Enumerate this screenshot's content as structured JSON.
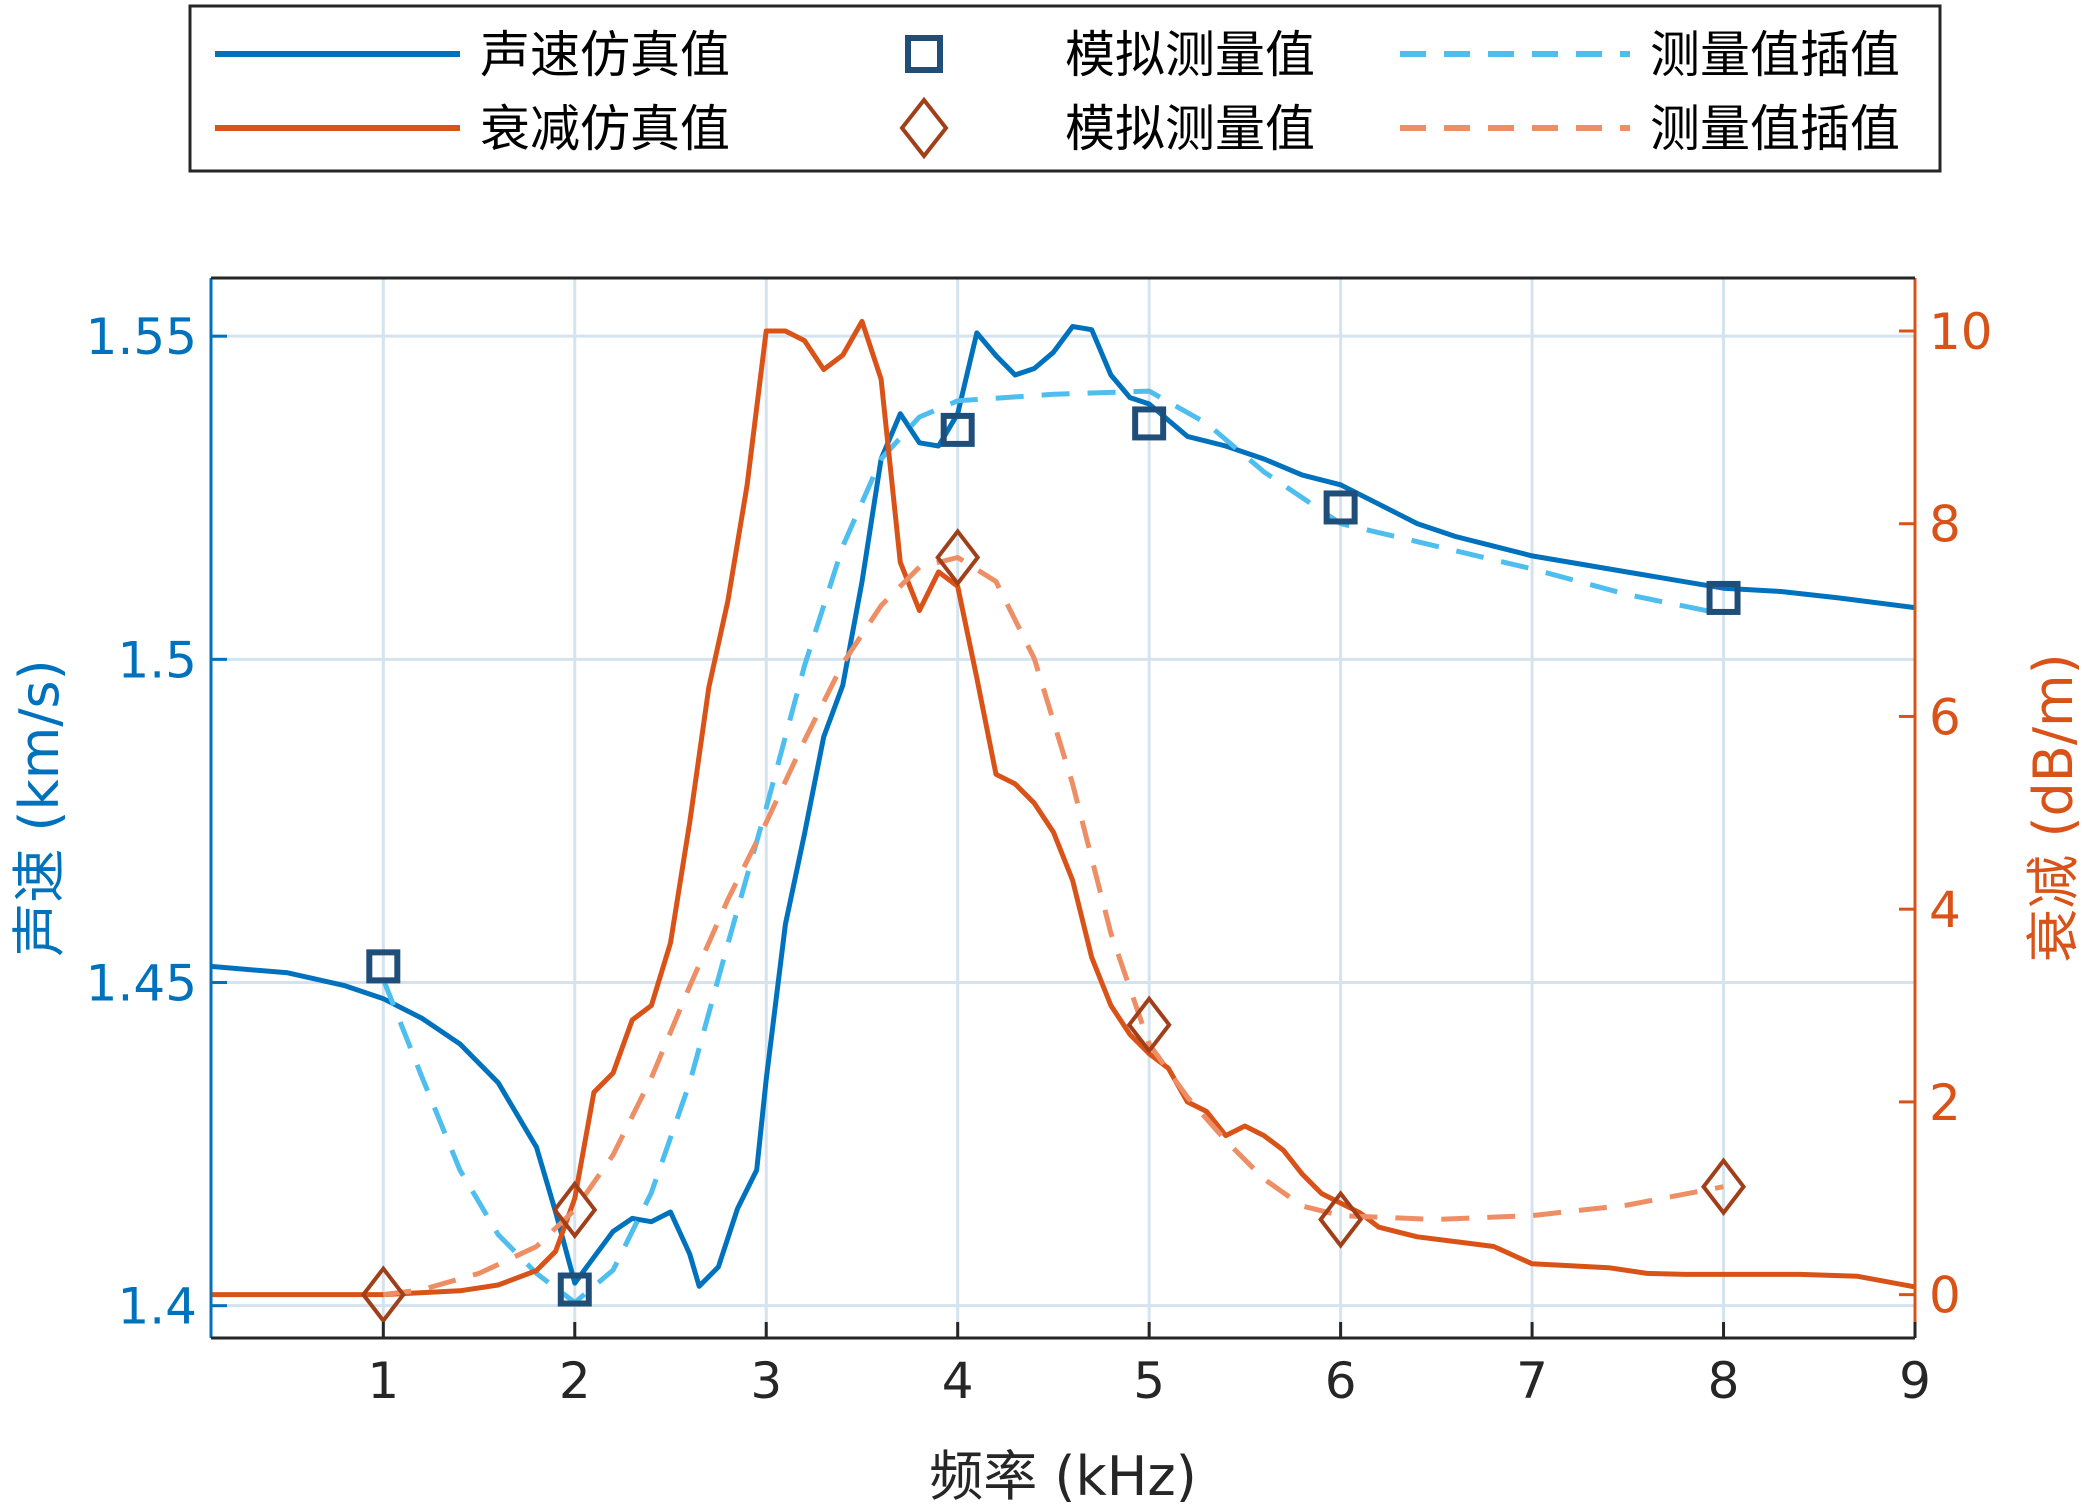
{
  "chart_data": {
    "type": "line",
    "xlabel": "频率 (kHz)",
    "ylabel_left": "声速 (km/s)",
    "ylabel_right": "衰减 (dB/m)",
    "xlim": [
      0.1,
      9
    ],
    "ylim_left": [
      1.395,
      1.559
    ],
    "ylim_right": [
      -0.45,
      10.55
    ],
    "x_ticks": [
      1,
      2,
      3,
      4,
      5,
      6,
      7,
      8,
      9
    ],
    "y_left_ticks": [
      {
        "value": 1.4,
        "label": "1.4"
      },
      {
        "value": 1.45,
        "label": "1.45"
      },
      {
        "value": 1.5,
        "label": "1.5"
      },
      {
        "value": 1.55,
        "label": "1.55"
      }
    ],
    "y_right_ticks": [
      {
        "value": 0,
        "label": "0"
      },
      {
        "value": 2,
        "label": "2"
      },
      {
        "value": 4,
        "label": "4"
      },
      {
        "value": 6,
        "label": "6"
      },
      {
        "value": 8,
        "label": "8"
      },
      {
        "value": 10,
        "label": "10"
      }
    ],
    "grid": true,
    "legend_position": "top",
    "colors": {
      "speed": "#0072BD",
      "speed_marker": "#1F4E79",
      "speed_interp": "#4DBEEE",
      "atten": "#D95319",
      "atten_marker": "#A0401A",
      "atten_interp": "#EE8E64",
      "grid": "#D5E3EE",
      "axis": "#262626"
    },
    "legend": [
      {
        "row": 0,
        "col": 0,
        "kind": "line",
        "color": "speed",
        "label": "声速仿真值"
      },
      {
        "row": 0,
        "col": 1,
        "kind": "square",
        "color": "speed_marker",
        "label": "模拟测量值"
      },
      {
        "row": 0,
        "col": 2,
        "kind": "dash",
        "color": "speed_interp",
        "label": "测量值插值"
      },
      {
        "row": 1,
        "col": 0,
        "kind": "line",
        "color": "atten",
        "label": "衰减仿真值"
      },
      {
        "row": 1,
        "col": 1,
        "kind": "diamond",
        "color": "atten_marker",
        "label": "模拟测量值"
      },
      {
        "row": 1,
        "col": 2,
        "kind": "dash",
        "color": "atten_interp",
        "label": "测量值插值"
      }
    ],
    "series": [
      {
        "key": "speed_sim",
        "axis": "left",
        "style": "line",
        "color": "speed",
        "points": [
          [
            0.1,
            1.4525
          ],
          [
            0.5,
            1.4515
          ],
          [
            0.8,
            1.4495
          ],
          [
            1.0,
            1.4475
          ],
          [
            1.2,
            1.4445
          ],
          [
            1.4,
            1.4405
          ],
          [
            1.6,
            1.4345
          ],
          [
            1.8,
            1.4245
          ],
          [
            1.9,
            1.4145
          ],
          [
            2.0,
            1.4035
          ],
          [
            2.1,
            1.4075
          ],
          [
            2.2,
            1.4115
          ],
          [
            2.3,
            1.4135
          ],
          [
            2.4,
            1.413
          ],
          [
            2.5,
            1.4145
          ],
          [
            2.6,
            1.408
          ],
          [
            2.65,
            1.403
          ],
          [
            2.75,
            1.406
          ],
          [
            2.85,
            1.415
          ],
          [
            2.95,
            1.421
          ],
          [
            3.0,
            1.435
          ],
          [
            3.1,
            1.459
          ],
          [
            3.2,
            1.473
          ],
          [
            3.3,
            1.488
          ],
          [
            3.4,
            1.496
          ],
          [
            3.5,
            1.512
          ],
          [
            3.6,
            1.531
          ],
          [
            3.7,
            1.538
          ],
          [
            3.8,
            1.5335
          ],
          [
            3.9,
            1.533
          ],
          [
            4.0,
            1.538
          ],
          [
            4.1,
            1.5505
          ],
          [
            4.2,
            1.547
          ],
          [
            4.3,
            1.544
          ],
          [
            4.4,
            1.545
          ],
          [
            4.5,
            1.5475
          ],
          [
            4.6,
            1.5515
          ],
          [
            4.7,
            1.551
          ],
          [
            4.8,
            1.544
          ],
          [
            4.9,
            1.5405
          ],
          [
            5.0,
            1.5395
          ],
          [
            5.2,
            1.5345
          ],
          [
            5.4,
            1.533
          ],
          [
            5.6,
            1.531
          ],
          [
            5.8,
            1.5285
          ],
          [
            6.0,
            1.527
          ],
          [
            6.2,
            1.524
          ],
          [
            6.4,
            1.521
          ],
          [
            6.6,
            1.519
          ],
          [
            6.8,
            1.5175
          ],
          [
            7.0,
            1.516
          ],
          [
            7.2,
            1.515
          ],
          [
            7.5,
            1.5135
          ],
          [
            7.8,
            1.512
          ],
          [
            8.0,
            1.511
          ],
          [
            8.3,
            1.5105
          ],
          [
            8.6,
            1.5095
          ],
          [
            9.0,
            1.508
          ]
        ]
      },
      {
        "key": "speed_interp",
        "axis": "left",
        "style": "dash",
        "color": "speed_interp",
        "points": [
          [
            1.0,
            1.4505
          ],
          [
            1.2,
            1.4355
          ],
          [
            1.4,
            1.421
          ],
          [
            1.6,
            1.411
          ],
          [
            1.8,
            1.405
          ],
          [
            2.0,
            1.4005
          ],
          [
            2.2,
            1.4055
          ],
          [
            2.4,
            1.4175
          ],
          [
            2.6,
            1.4345
          ],
          [
            2.8,
            1.456
          ],
          [
            3.0,
            1.477
          ],
          [
            3.2,
            1.499
          ],
          [
            3.4,
            1.5175
          ],
          [
            3.6,
            1.531
          ],
          [
            3.8,
            1.5375
          ],
          [
            4.0,
            1.54
          ],
          [
            4.5,
            1.541
          ],
          [
            5.0,
            1.5415
          ],
          [
            5.3,
            1.5365
          ],
          [
            5.6,
            1.529
          ],
          [
            6.0,
            1.521
          ],
          [
            6.5,
            1.5175
          ],
          [
            7.0,
            1.514
          ],
          [
            7.5,
            1.51
          ],
          [
            8.0,
            1.507
          ]
        ]
      },
      {
        "key": "atten_sim",
        "axis": "right",
        "style": "line",
        "color": "atten",
        "points": [
          [
            0.1,
            0.0
          ],
          [
            1.0,
            0.0
          ],
          [
            1.4,
            0.04
          ],
          [
            1.6,
            0.1
          ],
          [
            1.8,
            0.25
          ],
          [
            1.9,
            0.45
          ],
          [
            2.0,
            1.0
          ],
          [
            2.1,
            2.1
          ],
          [
            2.2,
            2.3
          ],
          [
            2.3,
            2.85
          ],
          [
            2.4,
            3.0
          ],
          [
            2.5,
            3.65
          ],
          [
            2.6,
            4.9
          ],
          [
            2.7,
            6.3
          ],
          [
            2.8,
            7.2
          ],
          [
            2.9,
            8.4
          ],
          [
            3.0,
            10.0
          ],
          [
            3.1,
            10.0
          ],
          [
            3.2,
            9.9
          ],
          [
            3.3,
            9.6
          ],
          [
            3.4,
            9.75
          ],
          [
            3.5,
            10.1
          ],
          [
            3.6,
            9.5
          ],
          [
            3.7,
            7.6
          ],
          [
            3.8,
            7.1
          ],
          [
            3.9,
            7.5
          ],
          [
            4.0,
            7.35
          ],
          [
            4.1,
            6.4
          ],
          [
            4.2,
            5.4
          ],
          [
            4.3,
            5.3
          ],
          [
            4.4,
            5.1
          ],
          [
            4.5,
            4.8
          ],
          [
            4.6,
            4.3
          ],
          [
            4.7,
            3.5
          ],
          [
            4.8,
            3.0
          ],
          [
            4.9,
            2.7
          ],
          [
            5.0,
            2.5
          ],
          [
            5.1,
            2.35
          ],
          [
            5.2,
            2.0
          ],
          [
            5.3,
            1.9
          ],
          [
            5.4,
            1.65
          ],
          [
            5.5,
            1.75
          ],
          [
            5.6,
            1.65
          ],
          [
            5.7,
            1.5
          ],
          [
            5.8,
            1.25
          ],
          [
            5.9,
            1.05
          ],
          [
            6.0,
            0.95
          ],
          [
            6.1,
            0.85
          ],
          [
            6.2,
            0.7
          ],
          [
            6.4,
            0.6
          ],
          [
            6.6,
            0.55
          ],
          [
            6.8,
            0.5
          ],
          [
            7.0,
            0.32
          ],
          [
            7.2,
            0.3
          ],
          [
            7.4,
            0.28
          ],
          [
            7.6,
            0.22
          ],
          [
            7.8,
            0.21
          ],
          [
            8.0,
            0.21
          ],
          [
            8.4,
            0.21
          ],
          [
            8.7,
            0.19
          ],
          [
            9.0,
            0.08
          ]
        ]
      },
      {
        "key": "atten_interp",
        "axis": "right",
        "style": "dash",
        "color": "atten_interp",
        "points": [
          [
            1.0,
            0.0
          ],
          [
            1.2,
            0.05
          ],
          [
            1.5,
            0.22
          ],
          [
            1.8,
            0.5
          ],
          [
            2.0,
            0.88
          ],
          [
            2.2,
            1.45
          ],
          [
            2.4,
            2.25
          ],
          [
            2.6,
            3.2
          ],
          [
            2.8,
            4.1
          ],
          [
            3.0,
            4.9
          ],
          [
            3.2,
            5.75
          ],
          [
            3.4,
            6.55
          ],
          [
            3.6,
            7.15
          ],
          [
            3.8,
            7.55
          ],
          [
            4.0,
            7.65
          ],
          [
            4.2,
            7.4
          ],
          [
            4.4,
            6.6
          ],
          [
            4.6,
            5.3
          ],
          [
            4.8,
            3.75
          ],
          [
            5.0,
            2.6
          ],
          [
            5.2,
            2.05
          ],
          [
            5.4,
            1.6
          ],
          [
            5.6,
            1.2
          ],
          [
            5.8,
            0.92
          ],
          [
            6.0,
            0.82
          ],
          [
            6.5,
            0.78
          ],
          [
            7.0,
            0.82
          ],
          [
            7.5,
            0.93
          ],
          [
            8.0,
            1.12
          ]
        ]
      }
    ],
    "markers": [
      {
        "key": "speed_measured",
        "axis": "left",
        "shape": "square",
        "color": "speed_marker",
        "points": [
          [
            1.0,
            1.4525
          ],
          [
            2.0,
            1.4025
          ],
          [
            4.0,
            1.5355
          ],
          [
            5.0,
            1.5365
          ],
          [
            6.0,
            1.5235
          ],
          [
            8.0,
            1.5095
          ]
        ]
      },
      {
        "key": "atten_measured",
        "axis": "right",
        "shape": "diamond",
        "color": "atten_marker",
        "points": [
          [
            1.0,
            0.0
          ],
          [
            2.0,
            0.88
          ],
          [
            4.0,
            7.65
          ],
          [
            5.0,
            2.8
          ],
          [
            6.0,
            0.78
          ],
          [
            8.0,
            1.12
          ]
        ]
      }
    ]
  }
}
